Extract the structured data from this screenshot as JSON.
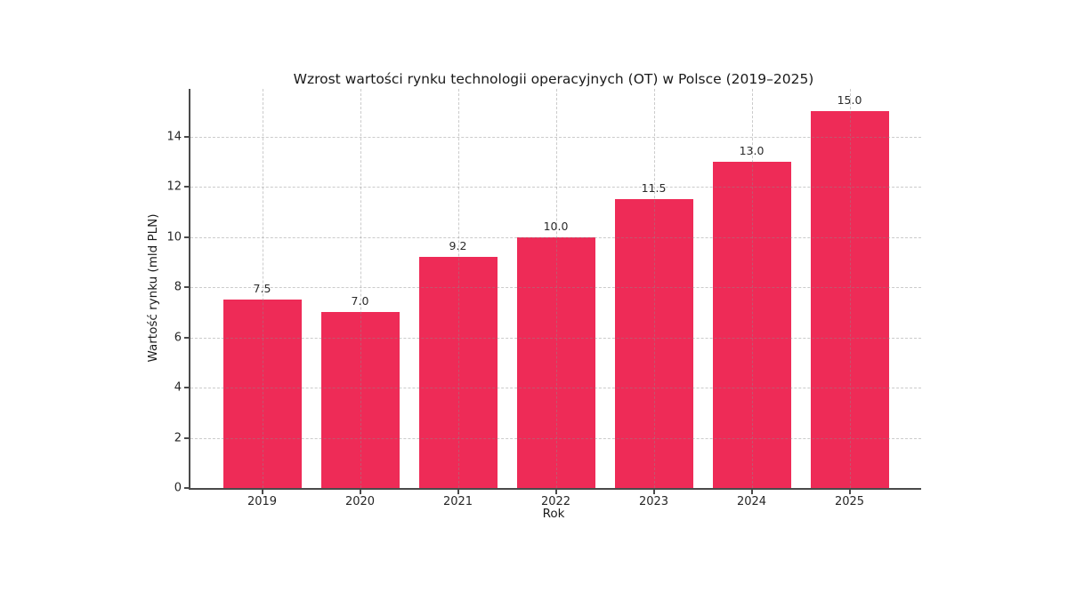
{
  "chart_data": {
    "type": "bar",
    "title": "Wzrost wartości rynku technologii operacyjnych (OT) w Polsce (2019–2025)",
    "xlabel": "Rok",
    "ylabel": "Wartość rynku (mld PLN)",
    "categories": [
      "2019",
      "2020",
      "2021",
      "2022",
      "2023",
      "2024",
      "2025"
    ],
    "values": [
      7.5,
      7.0,
      9.2,
      10.0,
      11.5,
      13.0,
      15.0
    ],
    "bar_labels": [
      "7.5",
      "7.0",
      "9.2",
      "10.0",
      "11.5",
      "13.0",
      "15.0"
    ],
    "yticks": [
      0,
      2,
      4,
      6,
      8,
      10,
      12,
      14
    ],
    "ylim": [
      0,
      16
    ],
    "grid": "both-axes, dashed, drawn over bars",
    "legend_position": "none",
    "bar_color": "#ee2b57",
    "grid_color": "#c9c9c9",
    "spine_color": "#4a4a4a",
    "text_color": "#262626",
    "background_color": "#ffffff"
  }
}
